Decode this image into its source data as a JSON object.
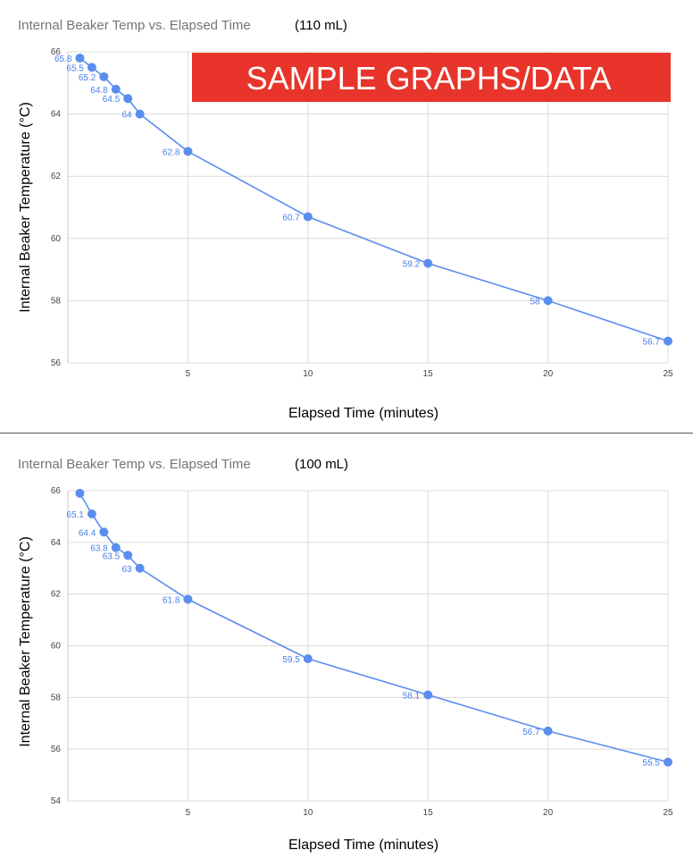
{
  "colors": {
    "series": "#5b8def",
    "label": "#4a80e8",
    "grid": "#dcdcdc",
    "banner": "#e8342a"
  },
  "banner": {
    "text": "SAMPLE GRAPHS/DATA"
  },
  "chart_data": [
    {
      "type": "line",
      "title": "Internal Beaker Temp vs. Elapsed Time",
      "title_suffix": "(110 mL)",
      "xlabel": "Elapsed Time (minutes)",
      "ylabel": "Internal Beaker Temperature  (°C)",
      "xlim": [
        0,
        25
      ],
      "ylim": [
        56,
        66
      ],
      "xticks": [
        5,
        10,
        15,
        20,
        25
      ],
      "yticks": [
        56,
        58,
        60,
        62,
        64,
        66
      ],
      "grid": true,
      "series": [
        {
          "x": [
            0.5,
            1,
            1.5,
            2,
            2.5,
            3,
            5,
            10,
            15,
            20,
            25
          ],
          "y": [
            65.8,
            65.5,
            65.2,
            64.8,
            64.5,
            64,
            62.8,
            60.7,
            59.2,
            58,
            56.7
          ],
          "labels": [
            "65.8",
            "65.5",
            "65.2",
            "64.8",
            "64.5",
            "64",
            "62.8",
            "60.7",
            "59.2",
            "58",
            "56.7"
          ]
        }
      ]
    },
    {
      "type": "line",
      "title": "Internal Beaker Temp vs. Elapsed Time",
      "title_suffix": "(100 mL)",
      "xlabel": "Elapsed Time (minutes)",
      "ylabel": "Internal Beaker Temperature  (°C)",
      "xlim": [
        0,
        25
      ],
      "ylim": [
        54,
        66
      ],
      "xticks": [
        5,
        10,
        15,
        20,
        25
      ],
      "yticks": [
        54,
        56,
        58,
        60,
        62,
        64,
        66
      ],
      "grid": true,
      "series": [
        {
          "x": [
            0.5,
            1,
            1.5,
            2,
            2.5,
            3,
            5,
            10,
            15,
            20,
            25
          ],
          "y": [
            65.9,
            65.1,
            64.4,
            63.8,
            63.5,
            63,
            61.8,
            59.5,
            58.1,
            56.7,
            55.5
          ],
          "labels": [
            "",
            "65.1",
            "64.4",
            "63.8",
            "63.5",
            "63",
            "61.8",
            "59.5",
            "58.1",
            "56.7",
            "55.5"
          ]
        }
      ]
    }
  ]
}
